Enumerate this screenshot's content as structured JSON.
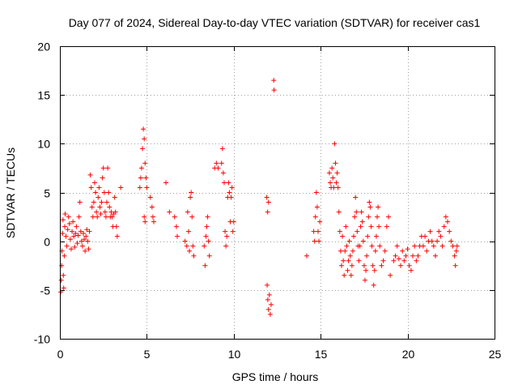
{
  "chart_data": {
    "type": "scatter",
    "title": "Day 077 of 2024, Sidereal Day-to-day VTEC variation (SDTVAR) for receiver cas1",
    "xlabel": "GPS time / hours",
    "ylabel": "SDTVAR / TECUs",
    "xlim": [
      0,
      25
    ],
    "ylim": [
      -10,
      20
    ],
    "xticks": [
      "0",
      "5",
      "10",
      "15",
      "20",
      "25"
    ],
    "yticks": [
      "-10",
      "-5",
      "0",
      "5",
      "10",
      "15",
      "20"
    ],
    "grid": true,
    "marker": "plus",
    "color": "#ff0000",
    "series": [
      {
        "name": "SDTVAR",
        "points": [
          [
            0.05,
            -5.2
          ],
          [
            0.08,
            -4.0
          ],
          [
            0.1,
            -2.5
          ],
          [
            0.12,
            -1.0
          ],
          [
            0.15,
            0.8
          ],
          [
            0.18,
            2.2
          ],
          [
            0.2,
            -3.5
          ],
          [
            0.22,
            -4.8
          ],
          [
            0.25,
            -1.5
          ],
          [
            0.28,
            1.5
          ],
          [
            0.3,
            2.8
          ],
          [
            0.35,
            0.5
          ],
          [
            0.4,
            -0.5
          ],
          [
            0.45,
            1.2
          ],
          [
            0.5,
            2.5
          ],
          [
            0.55,
            1.8
          ],
          [
            0.6,
            0.2
          ],
          [
            0.65,
            -0.8
          ],
          [
            0.7,
            1.0
          ],
          [
            0.75,
            2.0
          ],
          [
            0.8,
            0.5
          ],
          [
            0.85,
            -0.6
          ],
          [
            0.9,
            0.8
          ],
          [
            0.95,
            1.5
          ],
          [
            1.0,
            -0.2
          ],
          [
            1.05,
            0.6
          ],
          [
            1.1,
            2.5
          ],
          [
            1.15,
            4.0
          ],
          [
            1.2,
            1.0
          ],
          [
            1.25,
            0.0
          ],
          [
            1.3,
            -0.5
          ],
          [
            1.35,
            0.8
          ],
          [
            1.4,
            0.2
          ],
          [
            1.45,
            -1.0
          ],
          [
            1.5,
            0.5
          ],
          [
            1.55,
            1.2
          ],
          [
            1.6,
            0.0
          ],
          [
            1.65,
            -0.8
          ],
          [
            1.7,
            1.0
          ],
          [
            1.75,
            6.8
          ],
          [
            1.8,
            5.5
          ],
          [
            1.85,
            3.5
          ],
          [
            1.9,
            2.5
          ],
          [
            1.95,
            4.0
          ],
          [
            2.0,
            6.0
          ],
          [
            2.05,
            5.0
          ],
          [
            2.1,
            3.0
          ],
          [
            2.15,
            2.5
          ],
          [
            2.2,
            4.5
          ],
          [
            2.25,
            5.5
          ],
          [
            2.3,
            3.5
          ],
          [
            2.35,
            2.8
          ],
          [
            2.4,
            4.0
          ],
          [
            2.45,
            6.5
          ],
          [
            2.5,
            7.5
          ],
          [
            2.55,
            5.0
          ],
          [
            2.6,
            3.0
          ],
          [
            2.65,
            2.5
          ],
          [
            2.7,
            4.0
          ],
          [
            2.75,
            7.5
          ],
          [
            2.8,
            5.0
          ],
          [
            2.85,
            3.5
          ],
          [
            2.9,
            2.5
          ],
          [
            2.95,
            3.0
          ],
          [
            3.0,
            2.5
          ],
          [
            3.05,
            1.5
          ],
          [
            3.1,
            2.8
          ],
          [
            3.15,
            4.5
          ],
          [
            3.2,
            3.0
          ],
          [
            3.25,
            1.5
          ],
          [
            3.3,
            0.5
          ],
          [
            3.5,
            5.5
          ],
          [
            4.6,
            5.5
          ],
          [
            4.65,
            6.5
          ],
          [
            4.7,
            7.5
          ],
          [
            4.75,
            9.5
          ],
          [
            4.8,
            11.5
          ],
          [
            4.85,
            10.5
          ],
          [
            4.9,
            8.0
          ],
          [
            4.95,
            6.5
          ],
          [
            5.0,
            5.5
          ],
          [
            4.85,
            2.5
          ],
          [
            4.9,
            2.0
          ],
          [
            5.2,
            4.5
          ],
          [
            5.3,
            3.5
          ],
          [
            5.35,
            2.5
          ],
          [
            5.4,
            2.0
          ],
          [
            6.1,
            6.0
          ],
          [
            6.3,
            3.0
          ],
          [
            6.6,
            2.5
          ],
          [
            6.7,
            1.5
          ],
          [
            6.75,
            0.5
          ],
          [
            7.2,
            0.0
          ],
          [
            7.3,
            -0.5
          ],
          [
            7.35,
            3.0
          ],
          [
            7.4,
            1.0
          ],
          [
            7.45,
            -1.0
          ],
          [
            7.5,
            4.5
          ],
          [
            7.55,
            5.0
          ],
          [
            7.6,
            2.5
          ],
          [
            7.65,
            -0.5
          ],
          [
            7.7,
            -1.5
          ],
          [
            8.3,
            -0.5
          ],
          [
            8.35,
            -2.5
          ],
          [
            8.4,
            0.5
          ],
          [
            8.45,
            1.5
          ],
          [
            8.5,
            2.5
          ],
          [
            8.55,
            0.0
          ],
          [
            8.6,
            -1.5
          ],
          [
            8.9,
            7.5
          ],
          [
            9.0,
            8.0
          ],
          [
            9.1,
            7.5
          ],
          [
            9.3,
            8.0
          ],
          [
            9.35,
            9.5
          ],
          [
            9.4,
            7.0
          ],
          [
            9.45,
            6.0
          ],
          [
            9.5,
            1.0
          ],
          [
            9.55,
            -0.5
          ],
          [
            9.6,
            0.5
          ],
          [
            9.65,
            4.5
          ],
          [
            9.7,
            6.0
          ],
          [
            9.75,
            5.0
          ],
          [
            9.8,
            2.0
          ],
          [
            9.85,
            4.5
          ],
          [
            9.9,
            5.5
          ],
          [
            9.95,
            1.0
          ],
          [
            10.0,
            2.0
          ],
          [
            11.9,
            4.5
          ],
          [
            11.95,
            3.0
          ],
          [
            12.0,
            4.0
          ],
          [
            11.92,
            -4.5
          ],
          [
            11.96,
            -6.0
          ],
          [
            12.0,
            -7.0
          ],
          [
            12.05,
            -5.5
          ],
          [
            12.1,
            -7.5
          ],
          [
            12.15,
            -6.5
          ],
          [
            12.3,
            16.5
          ],
          [
            12.32,
            15.5
          ],
          [
            14.2,
            -1.5
          ],
          [
            14.6,
            1.0
          ],
          [
            14.65,
            0.0
          ],
          [
            14.7,
            2.5
          ],
          [
            14.75,
            5.0
          ],
          [
            14.8,
            3.5
          ],
          [
            14.85,
            1.0
          ],
          [
            14.9,
            0.0
          ],
          [
            14.95,
            2.0
          ],
          [
            15.5,
            7.0
          ],
          [
            15.55,
            6.0
          ],
          [
            15.6,
            5.5
          ],
          [
            15.65,
            7.5
          ],
          [
            15.7,
            6.5
          ],
          [
            15.75,
            5.5
          ],
          [
            15.8,
            10.0
          ],
          [
            15.85,
            8.0
          ],
          [
            15.9,
            6.0
          ],
          [
            15.95,
            7.0
          ],
          [
            16.0,
            5.5
          ],
          [
            16.05,
            3.0
          ],
          [
            16.1,
            1.0
          ],
          [
            16.15,
            -1.0
          ],
          [
            16.2,
            -2.5
          ],
          [
            16.25,
            0.5
          ],
          [
            16.3,
            -2.0
          ],
          [
            16.35,
            -3.5
          ],
          [
            16.4,
            -1.0
          ],
          [
            16.45,
            1.5
          ],
          [
            16.5,
            -0.5
          ],
          [
            16.55,
            -3.0
          ],
          [
            16.6,
            -2.0
          ],
          [
            16.65,
            0.0
          ],
          [
            16.7,
            -1.5
          ],
          [
            16.75,
            -3.5
          ],
          [
            16.8,
            -2.5
          ],
          [
            16.85,
            -1.0
          ],
          [
            16.9,
            0.5
          ],
          [
            16.95,
            2.5
          ],
          [
            17.0,
            4.5
          ],
          [
            17.05,
            3.0
          ],
          [
            17.1,
            1.0
          ],
          [
            17.15,
            -0.5
          ],
          [
            17.2,
            -2.0
          ],
          [
            17.25,
            -0.5
          ],
          [
            17.3,
            1.5
          ],
          [
            17.35,
            3.0
          ],
          [
            17.4,
            2.0
          ],
          [
            17.45,
            0.0
          ],
          [
            17.5,
            -2.5
          ],
          [
            17.55,
            -4.0
          ],
          [
            17.6,
            -3.0
          ],
          [
            17.65,
            -1.5
          ],
          [
            17.7,
            0.5
          ],
          [
            17.75,
            2.5
          ],
          [
            17.8,
            4.0
          ],
          [
            17.85,
            3.5
          ],
          [
            17.9,
            1.5
          ],
          [
            17.95,
            -0.5
          ],
          [
            18.0,
            -2.5
          ],
          [
            18.05,
            -4.5
          ],
          [
            18.1,
            -3.0
          ],
          [
            18.15,
            -1.0
          ],
          [
            18.2,
            0.5
          ],
          [
            18.25,
            2.5
          ],
          [
            18.3,
            3.5
          ],
          [
            18.35,
            1.5
          ],
          [
            18.4,
            -0.5
          ],
          [
            18.5,
            -2.5
          ],
          [
            18.6,
            -2.0
          ],
          [
            18.7,
            -1.0
          ],
          [
            18.8,
            1.5
          ],
          [
            18.9,
            2.5
          ],
          [
            19.0,
            -3.5
          ],
          [
            19.2,
            -2.0
          ],
          [
            19.3,
            -1.5
          ],
          [
            19.4,
            -0.5
          ],
          [
            19.5,
            -1.8
          ],
          [
            19.6,
            -2.5
          ],
          [
            19.7,
            -1.0
          ],
          [
            19.8,
            -2.0
          ],
          [
            19.9,
            -1.5
          ],
          [
            20.0,
            -0.8
          ],
          [
            20.1,
            -2.5
          ],
          [
            20.2,
            -3.0
          ],
          [
            20.3,
            -1.5
          ],
          [
            20.4,
            -0.5
          ],
          [
            20.5,
            -2.0
          ],
          [
            20.6,
            -1.5
          ],
          [
            20.7,
            -0.5
          ],
          [
            20.8,
            0.5
          ],
          [
            20.9,
            -0.5
          ],
          [
            21.0,
            0.5
          ],
          [
            21.1,
            -1.0
          ],
          [
            21.2,
            0.0
          ],
          [
            21.3,
            1.0
          ],
          [
            21.4,
            0.0
          ],
          [
            21.5,
            -0.5
          ],
          [
            21.6,
            -1.5
          ],
          [
            21.7,
            0.0
          ],
          [
            21.8,
            1.0
          ],
          [
            21.9,
            0.5
          ],
          [
            22.0,
            -0.5
          ],
          [
            22.1,
            1.5
          ],
          [
            22.2,
            2.5
          ],
          [
            22.3,
            2.0
          ],
          [
            22.4,
            1.0
          ],
          [
            22.5,
            0.0
          ],
          [
            22.6,
            -0.5
          ],
          [
            22.7,
            -1.5
          ],
          [
            22.75,
            -2.5
          ],
          [
            22.8,
            -1.0
          ],
          [
            22.85,
            -0.5
          ]
        ]
      }
    ]
  }
}
